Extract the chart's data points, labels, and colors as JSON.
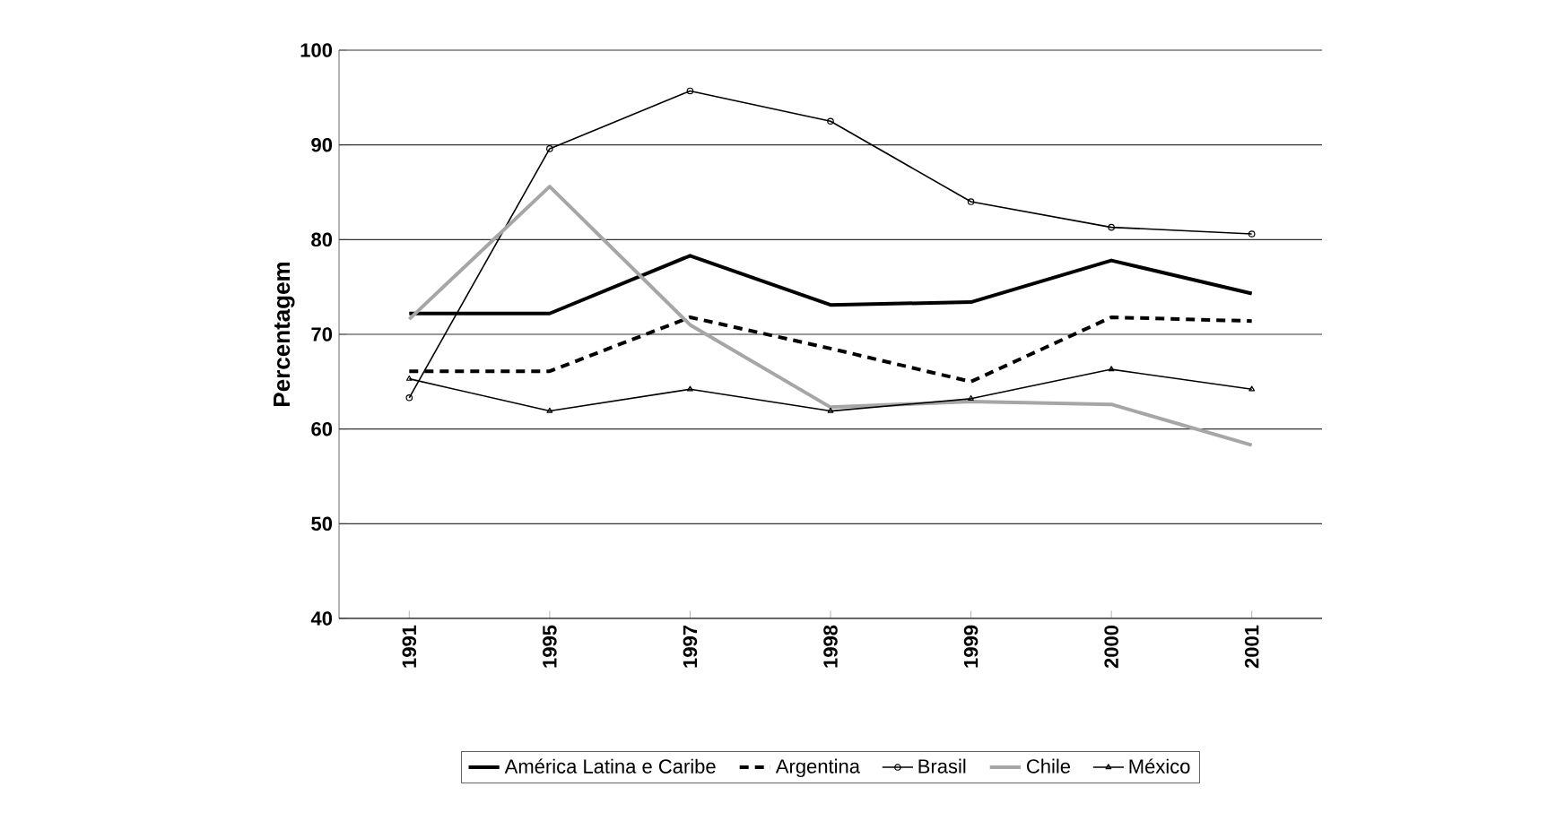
{
  "chart_data": {
    "type": "line",
    "ylabel": "Percentagem",
    "categories": [
      "1991",
      "1995",
      "1997",
      "1998",
      "1999",
      "2000",
      "2001"
    ],
    "ylim": [
      40,
      100
    ],
    "yticks": [
      40,
      50,
      60,
      70,
      80,
      90,
      100
    ],
    "grid": "y",
    "legend": "bottom",
    "series": [
      {
        "name": "América Latina e Caribe",
        "color": "#000000",
        "marker": "none",
        "line_style": "solid",
        "values": [
          72.2,
          72.2,
          78.3,
          73.1,
          73.4,
          77.8,
          74.3
        ]
      },
      {
        "name": "Argentina",
        "color": "#000000",
        "marker": "none",
        "line_style": "dashed",
        "values": [
          66.1,
          66.1,
          71.8,
          68.5,
          65.0,
          71.8,
          71.4
        ]
      },
      {
        "name": "Brasil",
        "color": "#000000",
        "marker": "circle",
        "line_style": "solid",
        "values": [
          63.3,
          89.6,
          95.7,
          92.5,
          84.0,
          81.3,
          80.6
        ]
      },
      {
        "name": "Chile",
        "color": "#a6a6a6",
        "marker": "none",
        "line_style": "solid",
        "values": [
          71.6,
          85.6,
          71.0,
          62.3,
          62.9,
          62.6,
          58.3
        ]
      },
      {
        "name": "México",
        "color": "#000000",
        "marker": "triangle",
        "line_style": "solid",
        "values": [
          65.3,
          61.9,
          64.2,
          61.9,
          63.2,
          66.3,
          64.2
        ]
      }
    ]
  }
}
